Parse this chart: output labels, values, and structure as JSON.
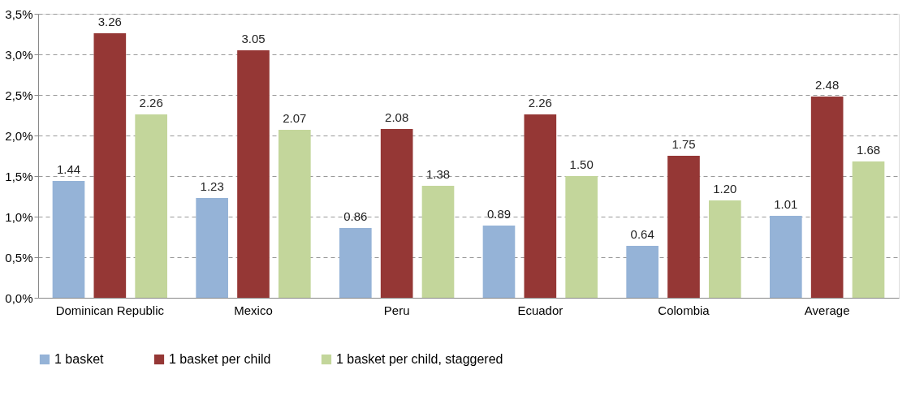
{
  "chart_data": {
    "type": "bar",
    "categories": [
      "Dominican Republic",
      "Mexico",
      "Peru",
      "Ecuador",
      "Colombia",
      "Average"
    ],
    "series": [
      {
        "name": "1 basket",
        "color": "#95b3d7",
        "values": [
          1.44,
          1.23,
          0.86,
          0.89,
          0.64,
          1.01
        ],
        "value_labels": [
          "1.44",
          "1.23",
          "0.86",
          "0.89",
          "0.64",
          "1.01"
        ]
      },
      {
        "name": "1 basket per child",
        "color": "#953735",
        "values": [
          3.26,
          3.05,
          2.08,
          2.26,
          1.75,
          2.48
        ],
        "value_labels": [
          "3.26",
          "3.05",
          "2.08",
          "2.26",
          "1.75",
          "2.48"
        ]
      },
      {
        "name": "1 basket per child, staggered",
        "color": "#c3d69b",
        "values": [
          2.26,
          2.07,
          1.38,
          1.5,
          1.2,
          1.68
        ],
        "value_labels": [
          "2.26",
          "2.07",
          "1.38",
          "1.50",
          "1.20",
          "1.68"
        ]
      }
    ],
    "ylim": [
      0,
      3.5
    ],
    "yticks": [
      {
        "value": 0,
        "label": "0,0%"
      },
      {
        "value": 0.5,
        "label": "0,5%"
      },
      {
        "value": 1,
        "label": "1,0%"
      },
      {
        "value": 1.5,
        "label": "1,5%"
      },
      {
        "value": 2,
        "label": "2,0%"
      },
      {
        "value": 2.5,
        "label": "2,5%"
      },
      {
        "value": 3,
        "label": "3,0%"
      },
      {
        "value": 3.5,
        "label": "3,5%"
      }
    ],
    "grid": "y",
    "legend": "bottom"
  }
}
